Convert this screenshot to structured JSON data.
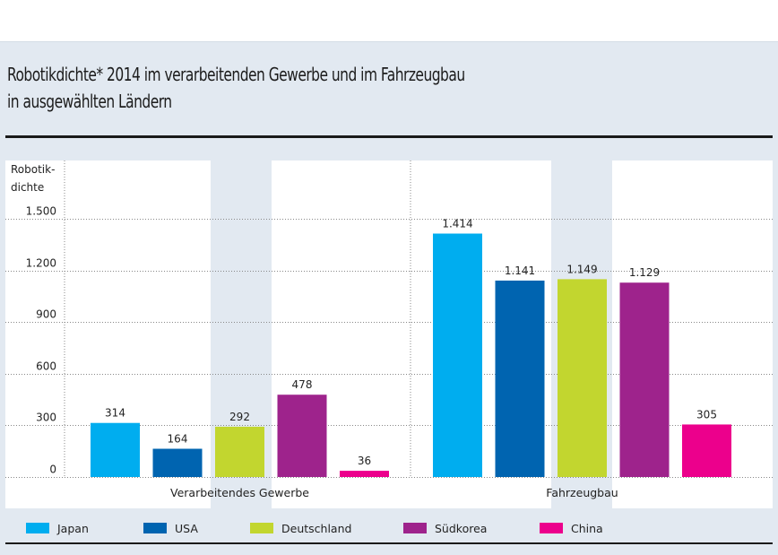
{
  "title_lines": [
    "Robotikdichte* 2014 im verarbeitenden Gewerbe und im Fahrzeugbau",
    "in ausgewählten Ländern"
  ],
  "chart_data": {
    "type": "bar",
    "title": "Robotikdichte* 2014 im verarbeitenden Gewerbe und im Fahrzeugbau in ausgewählten Ländern",
    "xlabel": "",
    "ylabel": "Robotik-dichte",
    "ylabel_lines": [
      "Robotik-",
      "dichte"
    ],
    "ylim": [
      0,
      1500
    ],
    "yticks": [
      0,
      300,
      600,
      900,
      1200,
      1500
    ],
    "ytick_labels": [
      "0",
      "300",
      "600",
      "900",
      "1.200",
      "1.500"
    ],
    "grid": true,
    "legend_position": "bottom",
    "categories": [
      "Verarbeitendes Gewerbe",
      "Fahrzeugbau"
    ],
    "series": [
      {
        "name": "Japan",
        "color": "#00adef",
        "values": [
          314,
          1414
        ],
        "labels": [
          "314",
          "1.414"
        ]
      },
      {
        "name": "USA",
        "color": "#0064b0",
        "values": [
          164,
          1141
        ],
        "labels": [
          "164",
          "1.141"
        ]
      },
      {
        "name": "Deutschland",
        "color": "#c2d62f",
        "values": [
          292,
          1149
        ],
        "labels": [
          "292",
          "1.149"
        ]
      },
      {
        "name": "Südkorea",
        "color": "#9e238c",
        "values": [
          478,
          1129
        ],
        "labels": [
          "478",
          "1.129"
        ]
      },
      {
        "name": "China",
        "color": "#ec008c",
        "values": [
          36,
          305
        ],
        "labels": [
          "36",
          "305"
        ]
      }
    ]
  }
}
